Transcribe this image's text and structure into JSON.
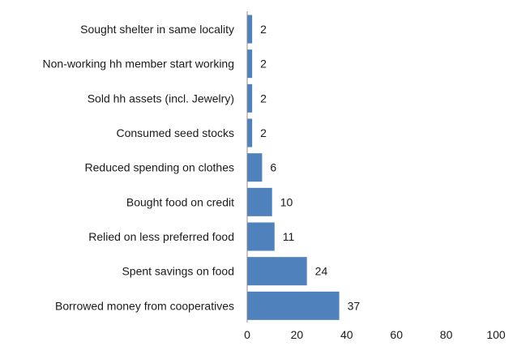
{
  "chart_data": {
    "type": "bar",
    "orientation": "horizontal",
    "categories": [
      "Sought shelter in same locality",
      "Non-working hh member start working",
      "Sold hh assets (incl. Jewelry)",
      "Consumed seed stocks",
      "Reduced spending on clothes",
      "Bought food on credit",
      "Relied on less preferred food",
      "Spent savings on food",
      "Borrowed money from cooperatives"
    ],
    "values": [
      2,
      2,
      2,
      2,
      6,
      10,
      11,
      24,
      37
    ],
    "xlim": [
      0,
      100
    ],
    "xticks": [
      0,
      20,
      40,
      60,
      80,
      100
    ],
    "grid": false,
    "legend": "none",
    "data_labels": true,
    "colors": {
      "bar": "#4f81bd",
      "axis": "#8c8c8c"
    }
  }
}
